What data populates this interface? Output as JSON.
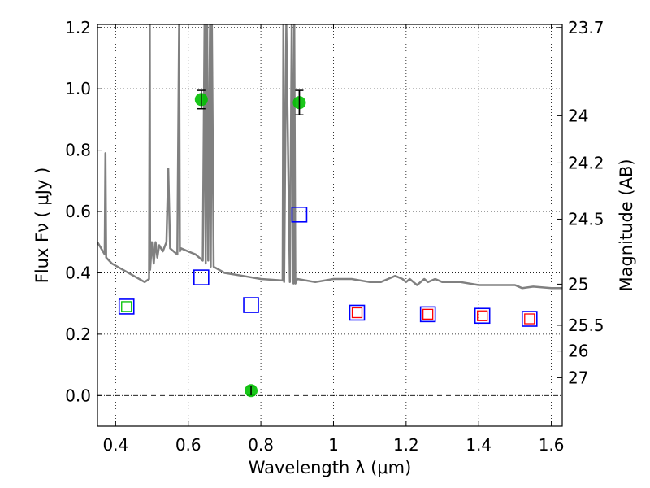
{
  "chart_data": {
    "type": "scatter",
    "xlabel": "Wavelength  λ (μm)",
    "ylabel": "Flux  Fν  ( μJy )",
    "ylabel_right": "Magnitude (AB)",
    "xlim": [
      0.35,
      1.63
    ],
    "ylim": [
      -0.1,
      1.21
    ],
    "x_ticks": [
      0.4,
      0.6,
      0.8,
      1.0,
      1.2,
      1.4,
      1.6
    ],
    "x_tick_labels": [
      "0.4",
      "0.6",
      "0.8",
      "1",
      "1.2",
      "1.4",
      "1.6"
    ],
    "y_ticks": [
      0.0,
      0.2,
      0.4,
      0.6,
      0.8,
      1.0,
      1.2
    ],
    "y_tick_labels": [
      "0.0",
      "0.2",
      "0.4",
      "0.6",
      "0.8",
      "1.0",
      "1.2"
    ],
    "right_ticks": [
      {
        "label": "23.7",
        "flux": 1.2
      },
      {
        "label": "24",
        "flux": 0.912
      },
      {
        "label": "24.2",
        "flux": 0.758
      },
      {
        "label": "24.5",
        "flux": 0.575
      },
      {
        "label": "25",
        "flux": 0.363
      },
      {
        "label": "25.5",
        "flux": 0.229
      },
      {
        "label": "26",
        "flux": 0.145
      },
      {
        "label": "27",
        "flux": 0.058
      }
    ],
    "grid": true,
    "series": [
      {
        "kind": "model-spectrum",
        "color": "#808080",
        "x": [
          0.35,
          0.37,
          0.372,
          0.374,
          0.39,
          0.42,
          0.45,
          0.48,
          0.492,
          0.494,
          0.495,
          0.5,
          0.505,
          0.51,
          0.515,
          0.52,
          0.53,
          0.54,
          0.545,
          0.55,
          0.56,
          0.57,
          0.575,
          0.577,
          0.58,
          0.6,
          0.62,
          0.64,
          0.645,
          0.648,
          0.652,
          0.655,
          0.66,
          0.662,
          0.665,
          0.67,
          0.7,
          0.75,
          0.8,
          0.86,
          0.862,
          0.864,
          0.87,
          0.88,
          0.885,
          0.89,
          0.892,
          0.895,
          0.9,
          0.95,
          1.0,
          1.05,
          1.1,
          1.13,
          1.15,
          1.17,
          1.19,
          1.2,
          1.21,
          1.23,
          1.25,
          1.26,
          1.28,
          1.3,
          1.35,
          1.4,
          1.45,
          1.5,
          1.52,
          1.55,
          1.6,
          1.63
        ],
        "y": [
          0.5,
          0.46,
          0.79,
          0.45,
          0.43,
          0.41,
          0.39,
          0.37,
          0.38,
          1.21,
          0.41,
          0.5,
          0.43,
          0.5,
          0.45,
          0.49,
          0.47,
          0.5,
          0.74,
          0.48,
          0.47,
          0.46,
          1.21,
          0.47,
          0.48,
          0.47,
          0.46,
          0.44,
          1.21,
          0.43,
          1.21,
          0.44,
          1.21,
          0.42,
          1.21,
          0.42,
          0.4,
          0.39,
          0.38,
          0.375,
          1.21,
          0.37,
          1.21,
          0.37,
          1.21,
          0.365,
          1.21,
          0.365,
          0.38,
          0.37,
          0.38,
          0.38,
          0.37,
          0.37,
          0.38,
          0.39,
          0.38,
          0.37,
          0.38,
          0.36,
          0.38,
          0.37,
          0.38,
          0.37,
          0.37,
          0.36,
          0.36,
          0.36,
          0.35,
          0.355,
          0.35,
          0.35
        ]
      },
      {
        "kind": "observed-flux",
        "color": "#00c000",
        "marker": "circle",
        "points": [
          {
            "x": 0.636,
            "y": 0.965,
            "err": 0.03
          },
          {
            "x": 0.906,
            "y": 0.955,
            "err": 0.04
          },
          {
            "x": 0.773,
            "y": 0.016,
            "err": 0.015
          }
        ]
      },
      {
        "kind": "model-photometry",
        "color": "#0000ff",
        "marker": "open-square",
        "points": [
          {
            "x": 0.43,
            "y": 0.29
          },
          {
            "x": 0.636,
            "y": 0.385
          },
          {
            "x": 0.773,
            "y": 0.295
          },
          {
            "x": 0.906,
            "y": 0.59
          },
          {
            "x": 1.065,
            "y": 0.27
          },
          {
            "x": 1.26,
            "y": 0.265
          },
          {
            "x": 1.41,
            "y": 0.26
          },
          {
            "x": 1.54,
            "y": 0.25
          }
        ]
      },
      {
        "kind": "inner-square",
        "marker": "open-square",
        "points": [
          {
            "x": 0.43,
            "y": 0.29,
            "color": "#00c000"
          },
          {
            "x": 1.065,
            "y": 0.27,
            "color": "#ff0000"
          },
          {
            "x": 1.26,
            "y": 0.265,
            "color": "#ff0000"
          },
          {
            "x": 1.41,
            "y": 0.26,
            "color": "#ff0000"
          },
          {
            "x": 1.54,
            "y": 0.25,
            "color": "#ff0000"
          }
        ]
      }
    ]
  }
}
